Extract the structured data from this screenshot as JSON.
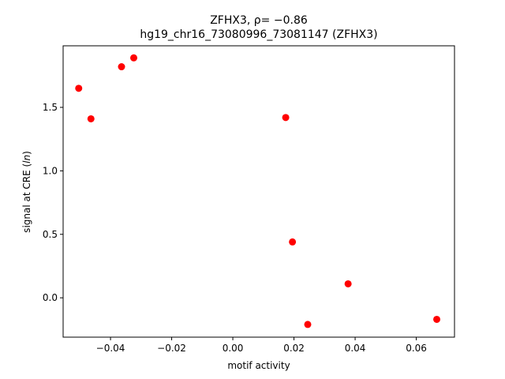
{
  "chart_data": {
    "type": "scatter",
    "title_line1": "ZFHX3, ρ= −0.86",
    "title_line2": "hg19_chr16_73080996_73081147 (ZFHX3)",
    "xlabel": "motif activity",
    "ylabel_prefix": "signal at CRE (",
    "ylabel_italic": "ln",
    "ylabel_suffix": ")",
    "xlim": [
      -0.0555,
      0.0725
    ],
    "ylim": [
      -0.31,
      1.985
    ],
    "xticks": [
      -0.04,
      -0.02,
      0.0,
      0.02,
      0.04,
      0.06
    ],
    "xtick_labels": [
      "−0.04",
      "−0.02",
      "0.00",
      "0.02",
      "0.04",
      "0.06"
    ],
    "yticks": [
      0.0,
      0.5,
      1.0,
      1.5
    ],
    "ytick_labels": [
      "0.0",
      "0.5",
      "1.0",
      "1.5"
    ],
    "grid": false,
    "marker_color": "#ff0000",
    "points": [
      {
        "x": -0.0504,
        "y": 1.65
      },
      {
        "x": -0.0464,
        "y": 1.41
      },
      {
        "x": -0.0364,
        "y": 1.82
      },
      {
        "x": -0.0324,
        "y": 1.89
      },
      {
        "x": 0.0173,
        "y": 1.42
      },
      {
        "x": 0.0195,
        "y": 0.44
      },
      {
        "x": 0.0245,
        "y": -0.21
      },
      {
        "x": 0.0377,
        "y": 0.11
      },
      {
        "x": 0.0667,
        "y": -0.17
      }
    ]
  }
}
